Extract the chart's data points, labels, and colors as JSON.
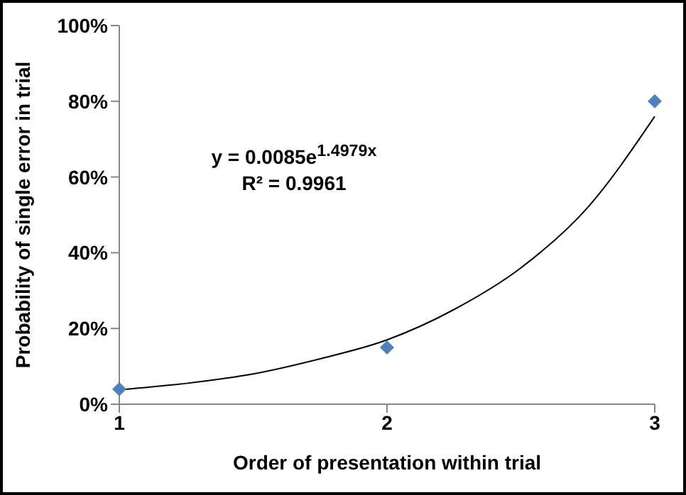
{
  "chart_data": {
    "type": "scatter",
    "xlabel": "Order of presentation within trial",
    "ylabel": "Probability of single error in trial",
    "annotations": [
      "y = 0.0085e$^{1.4979x}$",
      "R² = 0.9961"
    ],
    "xlim": [
      1,
      3
    ],
    "xticks": [
      1,
      2,
      3
    ],
    "ylim": [
      0,
      100
    ],
    "yticks": [
      {
        "value": 0,
        "label": "0%"
      },
      {
        "value": 20,
        "label": "20%"
      },
      {
        "value": 40,
        "label": "40%"
      },
      {
        "value": 60,
        "label": "60%"
      },
      {
        "value": 80,
        "label": "80%"
      },
      {
        "value": 100,
        "label": "100%"
      }
    ],
    "series": [
      {
        "color": "#4f81bd",
        "marker": "diamond",
        "x": [
          1,
          2,
          3
        ],
        "values": [
          4,
          15,
          80
        ]
      },
      {
        "type": "line",
        "color": "#000000",
        "marker": "none",
        "x": [
          1,
          1.25,
          1.5,
          1.75,
          2,
          2.25,
          2.5,
          2.75,
          3
        ],
        "values": [
          3.8,
          5.5,
          8,
          12,
          17,
          25,
          36,
          52,
          76
        ]
      }
    ]
  }
}
